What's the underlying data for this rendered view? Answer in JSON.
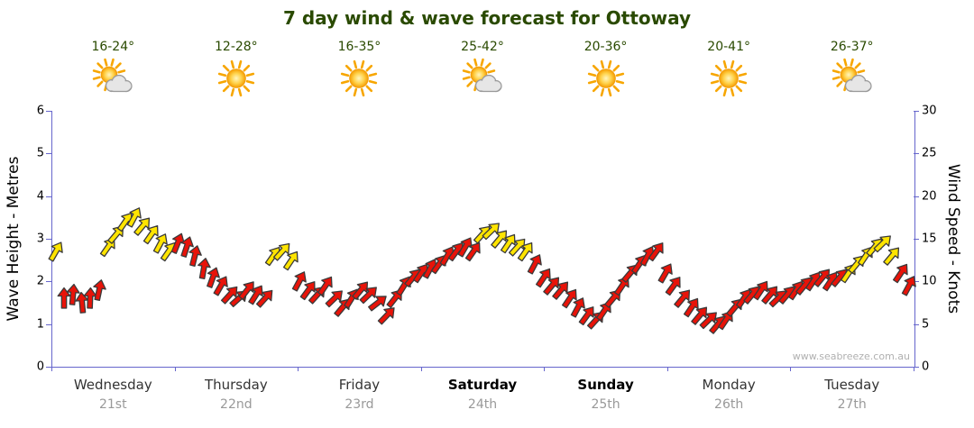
{
  "title": "7 day wind & wave forecast for Ottoway",
  "watermark": "www.seabreeze.com.au",
  "days": [
    {
      "name": "Wednesday",
      "date": "21st",
      "temp": "16-24°",
      "icon": "sun-cloud",
      "weekend": false
    },
    {
      "name": "Thursday",
      "date": "22nd",
      "temp": "12-28°",
      "icon": "sun",
      "weekend": false
    },
    {
      "name": "Friday",
      "date": "23rd",
      "temp": "16-35°",
      "icon": "sun",
      "weekend": false
    },
    {
      "name": "Saturday",
      "date": "24th",
      "temp": "25-42°",
      "icon": "sun-cloud",
      "weekend": true
    },
    {
      "name": "Sunday",
      "date": "25th",
      "temp": "20-36°",
      "icon": "sun",
      "weekend": true
    },
    {
      "name": "Monday",
      "date": "26th",
      "temp": "20-41°",
      "icon": "sun",
      "weekend": false
    },
    {
      "name": "Tuesday",
      "date": "27th",
      "temp": "26-37°",
      "icon": "sun-cloud",
      "weekend": false
    }
  ],
  "axes": {
    "left": {
      "title": "Wave Height - Metres",
      "range": [
        0,
        6
      ],
      "ticks": [
        0,
        1,
        2,
        3,
        4,
        5,
        6
      ]
    },
    "right": {
      "title": "Wind Speed - Knots",
      "range": [
        0,
        30
      ],
      "ticks": [
        0,
        5,
        10,
        15,
        20,
        25,
        30
      ]
    }
  },
  "colors": {
    "title_text": "#2a4a00",
    "temp_text": "#2a4a00",
    "axis": "#6666cc",
    "day_text": "#333333",
    "date_text": "#999999",
    "watermark": "#b0b0b0",
    "red_arrow": "#e81309",
    "yellow_arrow": "#ffe400",
    "arrow_outline": "#3a3a3a"
  },
  "chart_data": {
    "type": "wind-arrows",
    "categories": [
      "Wednesday 21st",
      "Thursday 22nd",
      "Friday 23rd",
      "Saturday 24th",
      "Sunday 25th",
      "Monday 26th",
      "Tuesday 27th"
    ],
    "y_axis_label": "Wind Speed - Knots",
    "y_axis_max": 30,
    "secondary_y_axis_label": "Wave Height - Metres",
    "secondary_y_axis_max": 6,
    "point_format": [
      "wind_speed_knots",
      "arrow_direction_deg_ccw_from_east",
      "color (r=red, y=yellow)"
    ],
    "points": [
      [
        13.5,
        -60,
        "y"
      ],
      [
        8,
        -90,
        "r"
      ],
      [
        8.5,
        -85,
        "r"
      ],
      [
        7.5,
        -95,
        "r"
      ],
      [
        8,
        -88,
        "r"
      ],
      [
        9,
        -78,
        "r"
      ],
      [
        14,
        -55,
        "y"
      ],
      [
        15.5,
        -50,
        "y"
      ],
      [
        17,
        -55,
        "y"
      ],
      [
        17.5,
        -62,
        "y"
      ],
      [
        16.5,
        -50,
        "y"
      ],
      [
        15.5,
        -55,
        "y"
      ],
      [
        14.5,
        -62,
        "y"
      ],
      [
        13.5,
        -55,
        "y"
      ],
      [
        14.5,
        -68,
        "r"
      ],
      [
        14,
        -72,
        "r"
      ],
      [
        13,
        -76,
        "r"
      ],
      [
        11.5,
        -80,
        "r"
      ],
      [
        10.5,
        -70,
        "r"
      ],
      [
        9.5,
        -60,
        "r"
      ],
      [
        8.5,
        -48,
        "r"
      ],
      [
        8,
        -42,
        "r"
      ],
      [
        9,
        -52,
        "r"
      ],
      [
        8.5,
        -58,
        "r"
      ],
      [
        8,
        -48,
        "r"
      ],
      [
        13,
        -55,
        "y"
      ],
      [
        13.5,
        -48,
        "y"
      ],
      [
        12.5,
        -56,
        "y"
      ],
      [
        10,
        -62,
        "r"
      ],
      [
        9,
        -54,
        "r"
      ],
      [
        8.5,
        -48,
        "r"
      ],
      [
        9.5,
        -56,
        "r"
      ],
      [
        8,
        -44,
        "r"
      ],
      [
        7,
        -50,
        "r"
      ],
      [
        8,
        -58,
        "r"
      ],
      [
        9,
        -50,
        "r"
      ],
      [
        8.5,
        -44,
        "r"
      ],
      [
        7.5,
        -38,
        "r"
      ],
      [
        6,
        -46,
        "r"
      ],
      [
        8,
        -52,
        "r"
      ],
      [
        9.5,
        -58,
        "r"
      ],
      [
        10.5,
        -50,
        "r"
      ],
      [
        11,
        -56,
        "r"
      ],
      [
        11.5,
        -62,
        "r"
      ],
      [
        12,
        -55,
        "r"
      ],
      [
        13,
        -60,
        "r"
      ],
      [
        13.5,
        -54,
        "r"
      ],
      [
        14,
        -60,
        "r"
      ],
      [
        13.5,
        -55,
        "r"
      ],
      [
        15.5,
        -48,
        "y"
      ],
      [
        16,
        -44,
        "y"
      ],
      [
        15,
        -50,
        "y"
      ],
      [
        14.5,
        -56,
        "y"
      ],
      [
        14,
        -48,
        "y"
      ],
      [
        13.5,
        -55,
        "y"
      ],
      [
        12,
        -62,
        "r"
      ],
      [
        10.5,
        -56,
        "r"
      ],
      [
        9.5,
        -50,
        "r"
      ],
      [
        9,
        -50,
        "r"
      ],
      [
        8,
        -56,
        "r"
      ],
      [
        7,
        -62,
        "r"
      ],
      [
        6,
        -54,
        "r"
      ],
      [
        5.5,
        -48,
        "r"
      ],
      [
        6.5,
        -56,
        "r"
      ],
      [
        8,
        -50,
        "r"
      ],
      [
        9.5,
        -56,
        "r"
      ],
      [
        11,
        -50,
        "r"
      ],
      [
        12,
        -56,
        "r"
      ],
      [
        13,
        -62,
        "r"
      ],
      [
        13.5,
        -54,
        "r"
      ],
      [
        11,
        -60,
        "r"
      ],
      [
        9.5,
        -54,
        "r"
      ],
      [
        8,
        -50,
        "r"
      ],
      [
        7,
        -56,
        "r"
      ],
      [
        6,
        -50,
        "r"
      ],
      [
        5.5,
        -44,
        "r"
      ],
      [
        5,
        -50,
        "r"
      ],
      [
        5.5,
        -56,
        "r"
      ],
      [
        7,
        -50,
        "r"
      ],
      [
        8,
        -56,
        "r"
      ],
      [
        8.5,
        -50,
        "r"
      ],
      [
        9,
        -56,
        "r"
      ],
      [
        8.5,
        -50,
        "r"
      ],
      [
        8,
        -44,
        "r"
      ],
      [
        8.5,
        -50,
        "r"
      ],
      [
        9,
        -56,
        "r"
      ],
      [
        9.5,
        -50,
        "r"
      ],
      [
        10,
        -56,
        "r"
      ],
      [
        10.5,
        -50,
        "r"
      ],
      [
        10,
        -56,
        "r"
      ],
      [
        10.5,
        -50,
        "r"
      ],
      [
        11,
        -56,
        "y"
      ],
      [
        12,
        -50,
        "y"
      ],
      [
        13,
        -56,
        "y"
      ],
      [
        14,
        -50,
        "y"
      ],
      [
        14.5,
        -44,
        "y"
      ],
      [
        13,
        -50,
        "y"
      ],
      [
        11,
        -56,
        "r"
      ],
      [
        9.5,
        -62,
        "r"
      ]
    ]
  }
}
